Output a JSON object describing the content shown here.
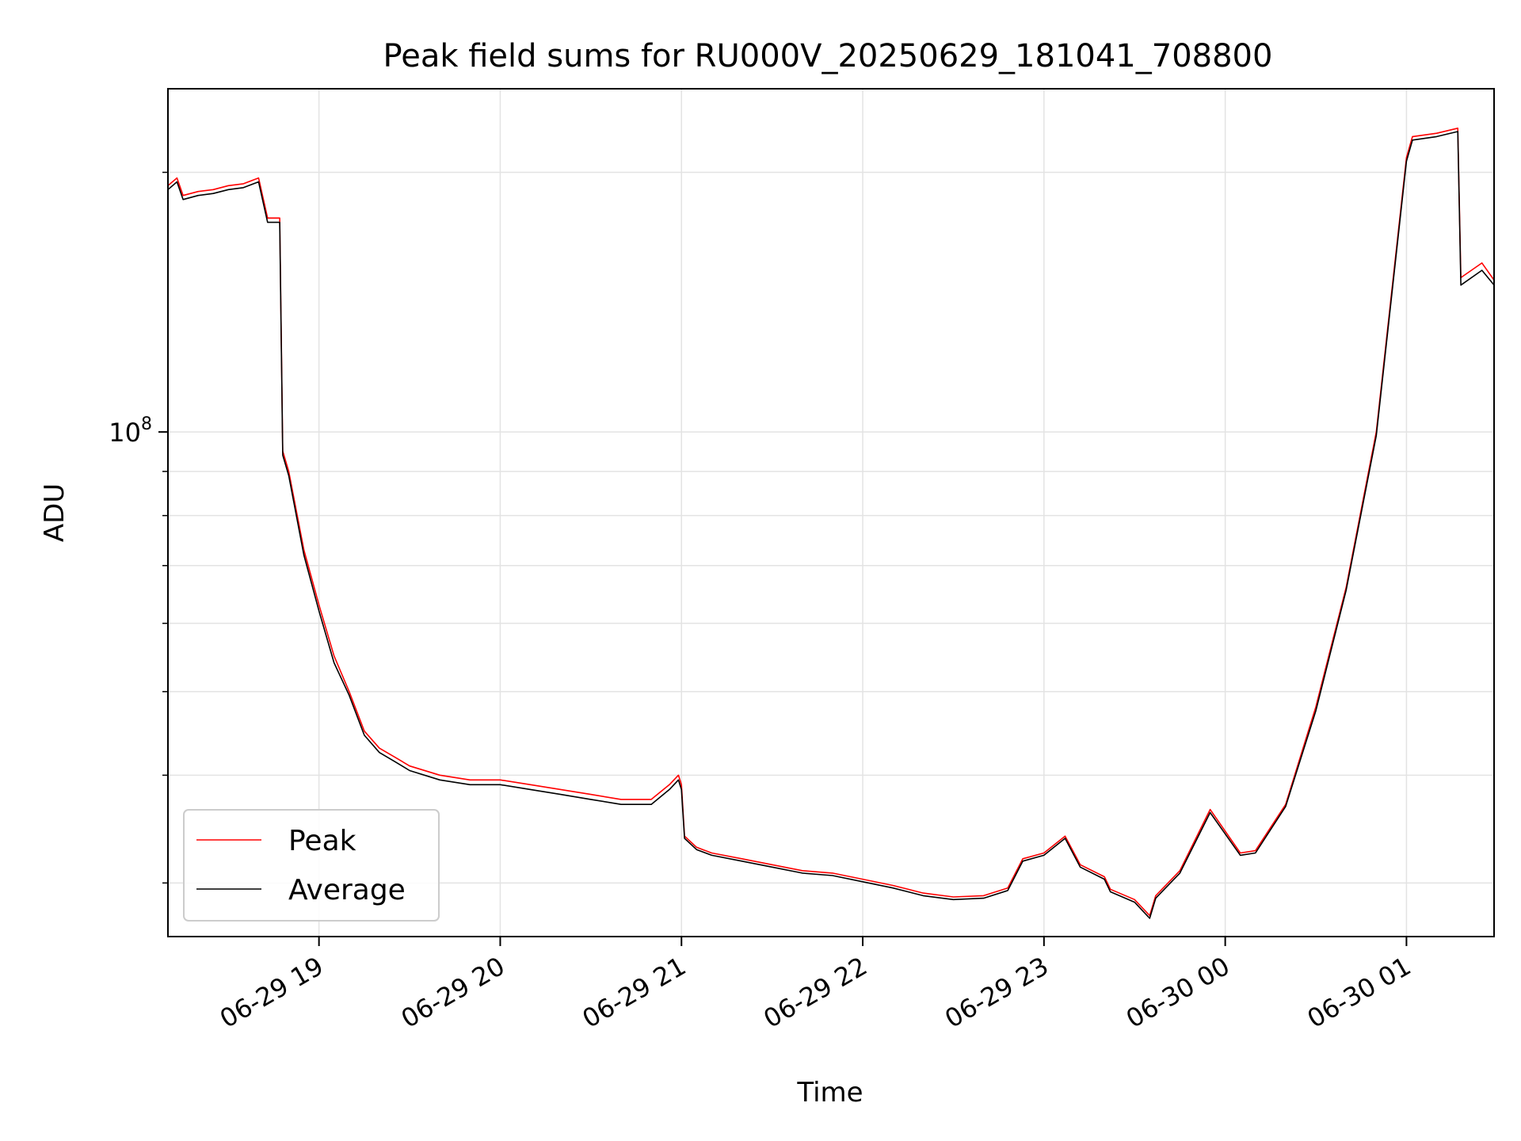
{
  "chart_data": {
    "type": "line",
    "title": "Peak field sums for RU000V_20250629_181041_708800",
    "xlabel": "Time",
    "ylabel": "ADU",
    "x_axis": {
      "type": "datetime",
      "range": [
        "2025-06-29 18:10",
        "2025-06-30 01:29"
      ],
      "ticks": [
        {
          "value": "2025-06-29 19:00",
          "label": "06-29 19"
        },
        {
          "value": "2025-06-29 20:00",
          "label": "06-29 20"
        },
        {
          "value": "2025-06-29 21:00",
          "label": "06-29 21"
        },
        {
          "value": "2025-06-29 22:00",
          "label": "06-29 22"
        },
        {
          "value": "2025-06-29 23:00",
          "label": "06-29 23"
        },
        {
          "value": "2025-06-30 00:00",
          "label": "06-30 00"
        },
        {
          "value": "2025-06-30 01:00",
          "label": "06-30 01"
        }
      ]
    },
    "y_axis": {
      "scale": "log",
      "range": [
        26000000,
        250000000
      ],
      "major_ticks": [
        {
          "value": 100000000,
          "base": "10",
          "exp": "8"
        }
      ],
      "minor_ticks": [
        30000000,
        40000000,
        50000000,
        60000000,
        70000000,
        80000000,
        90000000,
        200000000
      ]
    },
    "grid": true,
    "legend": {
      "placement": "lower-left"
    },
    "series": [
      {
        "name": "Peak",
        "color": "#ff0000",
        "x": [
          "06-29 18:10",
          "06-29 18:13",
          "06-29 18:15",
          "06-29 18:20",
          "06-29 18:25",
          "06-29 18:30",
          "06-29 18:35",
          "06-29 18:40",
          "06-29 18:43",
          "06-29 18:47",
          "06-29 18:48",
          "06-29 18:50",
          "06-29 18:55",
          "06-29 19:00",
          "06-29 19:05",
          "06-29 19:10",
          "06-29 19:15",
          "06-29 19:20",
          "06-29 19:25",
          "06-29 19:30",
          "06-29 19:40",
          "06-29 19:50",
          "06-29 20:00",
          "06-29 20:10",
          "06-29 20:20",
          "06-29 20:30",
          "06-29 20:40",
          "06-29 20:50",
          "06-29 20:56",
          "06-29 20:59",
          "06-29 21:00",
          "06-29 21:01",
          "06-29 21:05",
          "06-29 21:10",
          "06-29 21:20",
          "06-29 21:30",
          "06-29 21:40",
          "06-29 21:50",
          "06-29 22:00",
          "06-29 22:10",
          "06-29 22:20",
          "06-29 22:30",
          "06-29 22:40",
          "06-29 22:48",
          "06-29 22:53",
          "06-29 23:00",
          "06-29 23:07",
          "06-29 23:12",
          "06-29 23:20",
          "06-29 23:22",
          "06-29 23:30",
          "06-29 23:35",
          "06-29 23:37",
          "06-29 23:45",
          "06-29 23:55",
          "06-30 00:05",
          "06-30 00:10",
          "06-30 00:20",
          "06-30 00:30",
          "06-30 00:40",
          "06-30 00:50",
          "06-30 01:00",
          "06-30 01:02",
          "06-30 01:10",
          "06-30 01:17",
          "06-30 01:18",
          "06-30 01:25",
          "06-30 01:29"
        ],
        "y": [
          193000000,
          197000000,
          188000000,
          190000000,
          191000000,
          193000000,
          194000000,
          197000000,
          177000000,
          177000000,
          95000000,
          90000000,
          73000000,
          63000000,
          55000000,
          50000000,
          45000000,
          43000000,
          42000000,
          41000000,
          40000000,
          39500000,
          39500000,
          39000000,
          38500000,
          38000000,
          37500000,
          37500000,
          39000000,
          40000000,
          39000000,
          34000000,
          33000000,
          32500000,
          32000000,
          31500000,
          31000000,
          30800000,
          30300000,
          29800000,
          29200000,
          28900000,
          29000000,
          29600000,
          32000000,
          32500000,
          34000000,
          31500000,
          30500000,
          29500000,
          28700000,
          27500000,
          29000000,
          31000000,
          36500000,
          32500000,
          32700000,
          37000000,
          48000000,
          66000000,
          100000000,
          208000000,
          220000000,
          222000000,
          225000000,
          151000000,
          157000000,
          150000000
        ]
      },
      {
        "name": "Average",
        "color": "#000000",
        "x": [
          "06-29 18:10",
          "06-29 18:13",
          "06-29 18:15",
          "06-29 18:20",
          "06-29 18:25",
          "06-29 18:30",
          "06-29 18:35",
          "06-29 18:40",
          "06-29 18:43",
          "06-29 18:47",
          "06-29 18:48",
          "06-29 18:50",
          "06-29 18:55",
          "06-29 19:00",
          "06-29 19:05",
          "06-29 19:10",
          "06-29 19:15",
          "06-29 19:20",
          "06-29 19:25",
          "06-29 19:30",
          "06-29 19:40",
          "06-29 19:50",
          "06-29 20:00",
          "06-29 20:10",
          "06-29 20:20",
          "06-29 20:30",
          "06-29 20:40",
          "06-29 20:50",
          "06-29 20:56",
          "06-29 20:59",
          "06-29 21:00",
          "06-29 21:01",
          "06-29 21:05",
          "06-29 21:10",
          "06-29 21:20",
          "06-29 21:30",
          "06-29 21:40",
          "06-29 21:50",
          "06-29 22:00",
          "06-29 22:10",
          "06-29 22:20",
          "06-29 22:30",
          "06-29 22:40",
          "06-29 22:48",
          "06-29 22:53",
          "06-29 23:00",
          "06-29 23:07",
          "06-29 23:12",
          "06-29 23:20",
          "06-29 23:22",
          "06-29 23:30",
          "06-29 23:35",
          "06-29 23:37",
          "06-29 23:45",
          "06-29 23:55",
          "06-30 00:05",
          "06-30 00:10",
          "06-30 00:20",
          "06-30 00:30",
          "06-30 00:40",
          "06-30 00:50",
          "06-30 01:00",
          "06-30 01:02",
          "06-30 01:10",
          "06-30 01:17",
          "06-30 01:18",
          "06-30 01:25",
          "06-30 01:29"
        ],
        "y": [
          191000000,
          195000000,
          186000000,
          188000000,
          189000000,
          191000000,
          192000000,
          195000000,
          175000000,
          175000000,
          94000000,
          89000000,
          72000000,
          62000000,
          54000000,
          49500000,
          44500000,
          42500000,
          41500000,
          40500000,
          39500000,
          39000000,
          39000000,
          38500000,
          38000000,
          37500000,
          37000000,
          37000000,
          38500000,
          39500000,
          38500000,
          33800000,
          32800000,
          32300000,
          31800000,
          31300000,
          30800000,
          30600000,
          30100000,
          29600000,
          29000000,
          28700000,
          28800000,
          29400000,
          31800000,
          32300000,
          33800000,
          31300000,
          30300000,
          29300000,
          28500000,
          27300000,
          28800000,
          30800000,
          36200000,
          32300000,
          32500000,
          36800000,
          47500000,
          65500000,
          99000000,
          206000000,
          218000000,
          220000000,
          223000000,
          148000000,
          154000000,
          148000000
        ]
      }
    ]
  }
}
